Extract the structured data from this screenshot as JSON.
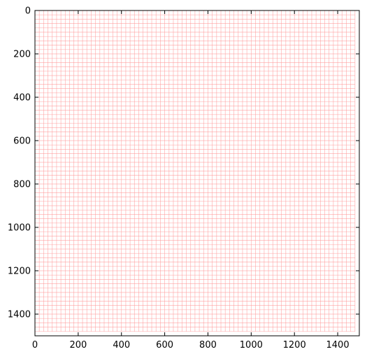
{
  "chart_data": {
    "type": "heatmap",
    "title": "",
    "xlabel": "",
    "ylabel": "",
    "xlim": [
      0,
      1500
    ],
    "ylim": [
      1500,
      0
    ],
    "x_ticks": [
      0,
      200,
      400,
      600,
      800,
      1000,
      1200,
      1400
    ],
    "y_ticks": [
      0,
      200,
      400,
      600,
      800,
      1000,
      1200,
      1400
    ],
    "x_tick_labels": [
      "0",
      "200",
      "400",
      "600",
      "800",
      "1000",
      "1200",
      "1400"
    ],
    "y_tick_labels": [
      "0",
      "200",
      "400",
      "600",
      "800",
      "1000",
      "1200",
      "1400"
    ],
    "image_extent": [
      0,
      1480
    ],
    "cell_size": 20,
    "grid_color": "#ff9a9a",
    "background_color": "#ffffff",
    "grid": false,
    "legend": false
  }
}
